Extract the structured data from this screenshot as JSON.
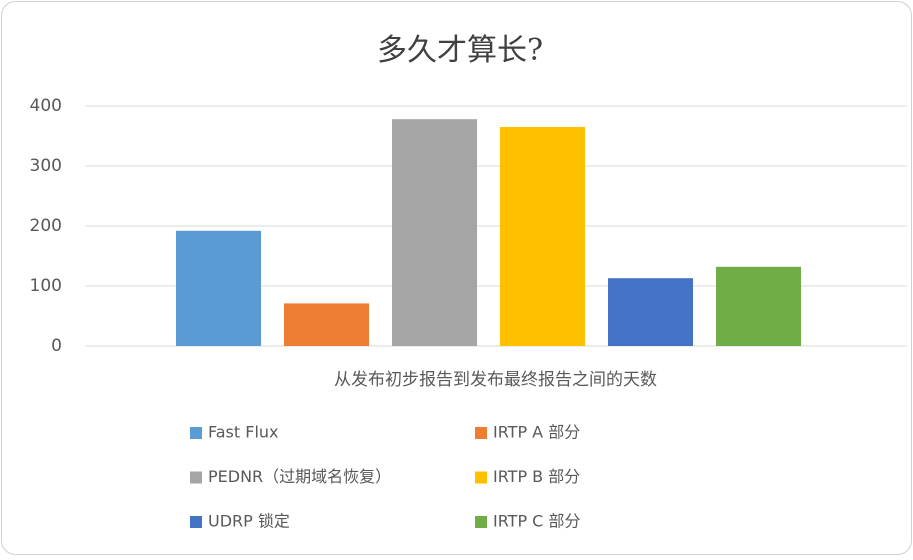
{
  "chart_data": {
    "type": "bar",
    "title": "多久才算长?",
    "categories": [
      "从发布初步报告到发布最终报告之间的天数"
    ],
    "series": [
      {
        "name": "Fast Flux",
        "color": "#5b9bd5",
        "values": [
          192
        ]
      },
      {
        "name": "IRTP A 部分",
        "color": "#ed7d31",
        "values": [
          71
        ]
      },
      {
        "name": "PEDNR（过期域名恢复）",
        "color": "#a5a5a5",
        "values": [
          378
        ]
      },
      {
        "name": "IRTP B 部分",
        "color": "#ffc000",
        "values": [
          365
        ]
      },
      {
        "name": "UDRP 锁定",
        "color": "#4472c4",
        "values": [
          113
        ]
      },
      {
        "name": "IRTP C 部分",
        "color": "#70ad47",
        "values": [
          132
        ]
      }
    ],
    "ylim": [
      0,
      400
    ],
    "yticks": [
      0,
      100,
      200,
      300,
      400
    ],
    "grid": true,
    "legend": "bottom"
  }
}
